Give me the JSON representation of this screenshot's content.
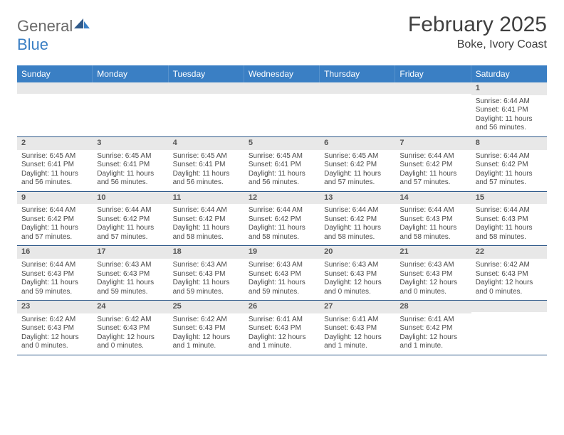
{
  "logo": {
    "text1": "General",
    "text2": "Blue"
  },
  "title": "February 2025",
  "location": "Boke, Ivory Coast",
  "dow_bg": "#3a7fc4",
  "dow_labels": [
    "Sunday",
    "Monday",
    "Tuesday",
    "Wednesday",
    "Thursday",
    "Friday",
    "Saturday"
  ],
  "weeks": [
    [
      null,
      null,
      null,
      null,
      null,
      null,
      {
        "n": "1",
        "sunrise": "Sunrise: 6:44 AM",
        "sunset": "Sunset: 6:41 PM",
        "daylight": "Daylight: 11 hours and 56 minutes."
      }
    ],
    [
      {
        "n": "2",
        "sunrise": "Sunrise: 6:45 AM",
        "sunset": "Sunset: 6:41 PM",
        "daylight": "Daylight: 11 hours and 56 minutes."
      },
      {
        "n": "3",
        "sunrise": "Sunrise: 6:45 AM",
        "sunset": "Sunset: 6:41 PM",
        "daylight": "Daylight: 11 hours and 56 minutes."
      },
      {
        "n": "4",
        "sunrise": "Sunrise: 6:45 AM",
        "sunset": "Sunset: 6:41 PM",
        "daylight": "Daylight: 11 hours and 56 minutes."
      },
      {
        "n": "5",
        "sunrise": "Sunrise: 6:45 AM",
        "sunset": "Sunset: 6:41 PM",
        "daylight": "Daylight: 11 hours and 56 minutes."
      },
      {
        "n": "6",
        "sunrise": "Sunrise: 6:45 AM",
        "sunset": "Sunset: 6:42 PM",
        "daylight": "Daylight: 11 hours and 57 minutes."
      },
      {
        "n": "7",
        "sunrise": "Sunrise: 6:44 AM",
        "sunset": "Sunset: 6:42 PM",
        "daylight": "Daylight: 11 hours and 57 minutes."
      },
      {
        "n": "8",
        "sunrise": "Sunrise: 6:44 AM",
        "sunset": "Sunset: 6:42 PM",
        "daylight": "Daylight: 11 hours and 57 minutes."
      }
    ],
    [
      {
        "n": "9",
        "sunrise": "Sunrise: 6:44 AM",
        "sunset": "Sunset: 6:42 PM",
        "daylight": "Daylight: 11 hours and 57 minutes."
      },
      {
        "n": "10",
        "sunrise": "Sunrise: 6:44 AM",
        "sunset": "Sunset: 6:42 PM",
        "daylight": "Daylight: 11 hours and 57 minutes."
      },
      {
        "n": "11",
        "sunrise": "Sunrise: 6:44 AM",
        "sunset": "Sunset: 6:42 PM",
        "daylight": "Daylight: 11 hours and 58 minutes."
      },
      {
        "n": "12",
        "sunrise": "Sunrise: 6:44 AM",
        "sunset": "Sunset: 6:42 PM",
        "daylight": "Daylight: 11 hours and 58 minutes."
      },
      {
        "n": "13",
        "sunrise": "Sunrise: 6:44 AM",
        "sunset": "Sunset: 6:42 PM",
        "daylight": "Daylight: 11 hours and 58 minutes."
      },
      {
        "n": "14",
        "sunrise": "Sunrise: 6:44 AM",
        "sunset": "Sunset: 6:43 PM",
        "daylight": "Daylight: 11 hours and 58 minutes."
      },
      {
        "n": "15",
        "sunrise": "Sunrise: 6:44 AM",
        "sunset": "Sunset: 6:43 PM",
        "daylight": "Daylight: 11 hours and 58 minutes."
      }
    ],
    [
      {
        "n": "16",
        "sunrise": "Sunrise: 6:44 AM",
        "sunset": "Sunset: 6:43 PM",
        "daylight": "Daylight: 11 hours and 59 minutes."
      },
      {
        "n": "17",
        "sunrise": "Sunrise: 6:43 AM",
        "sunset": "Sunset: 6:43 PM",
        "daylight": "Daylight: 11 hours and 59 minutes."
      },
      {
        "n": "18",
        "sunrise": "Sunrise: 6:43 AM",
        "sunset": "Sunset: 6:43 PM",
        "daylight": "Daylight: 11 hours and 59 minutes."
      },
      {
        "n": "19",
        "sunrise": "Sunrise: 6:43 AM",
        "sunset": "Sunset: 6:43 PM",
        "daylight": "Daylight: 11 hours and 59 minutes."
      },
      {
        "n": "20",
        "sunrise": "Sunrise: 6:43 AM",
        "sunset": "Sunset: 6:43 PM",
        "daylight": "Daylight: 12 hours and 0 minutes."
      },
      {
        "n": "21",
        "sunrise": "Sunrise: 6:43 AM",
        "sunset": "Sunset: 6:43 PM",
        "daylight": "Daylight: 12 hours and 0 minutes."
      },
      {
        "n": "22",
        "sunrise": "Sunrise: 6:42 AM",
        "sunset": "Sunset: 6:43 PM",
        "daylight": "Daylight: 12 hours and 0 minutes."
      }
    ],
    [
      {
        "n": "23",
        "sunrise": "Sunrise: 6:42 AM",
        "sunset": "Sunset: 6:43 PM",
        "daylight": "Daylight: 12 hours and 0 minutes."
      },
      {
        "n": "24",
        "sunrise": "Sunrise: 6:42 AM",
        "sunset": "Sunset: 6:43 PM",
        "daylight": "Daylight: 12 hours and 0 minutes."
      },
      {
        "n": "25",
        "sunrise": "Sunrise: 6:42 AM",
        "sunset": "Sunset: 6:43 PM",
        "daylight": "Daylight: 12 hours and 1 minute."
      },
      {
        "n": "26",
        "sunrise": "Sunrise: 6:41 AM",
        "sunset": "Sunset: 6:43 PM",
        "daylight": "Daylight: 12 hours and 1 minute."
      },
      {
        "n": "27",
        "sunrise": "Sunrise: 6:41 AM",
        "sunset": "Sunset: 6:43 PM",
        "daylight": "Daylight: 12 hours and 1 minute."
      },
      {
        "n": "28",
        "sunrise": "Sunrise: 6:41 AM",
        "sunset": "Sunset: 6:42 PM",
        "daylight": "Daylight: 12 hours and 1 minute."
      },
      null
    ]
  ]
}
